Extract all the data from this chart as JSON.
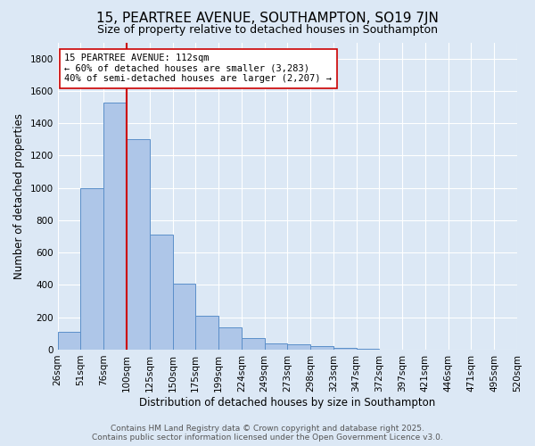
{
  "title": "15, PEARTREE AVENUE, SOUTHAMPTON, SO19 7JN",
  "subtitle": "Size of property relative to detached houses in Southampton",
  "xlabel": "Distribution of detached houses by size in Southampton",
  "ylabel": "Number of detached properties",
  "bar_values": [
    110,
    1000,
    1530,
    1300,
    710,
    410,
    210,
    140,
    70,
    40,
    35,
    20,
    12,
    8,
    0,
    0,
    0,
    0,
    0,
    0
  ],
  "categories": [
    "26sqm",
    "51sqm",
    "76sqm",
    "100sqm",
    "125sqm",
    "150sqm",
    "175sqm",
    "199sqm",
    "224sqm",
    "249sqm",
    "273sqm",
    "298sqm",
    "323sqm",
    "347sqm",
    "372sqm",
    "397sqm",
    "421sqm",
    "446sqm",
    "471sqm",
    "495sqm",
    "520sqm"
  ],
  "bar_color": "#aec6e8",
  "bar_edge_color": "#5b8fc9",
  "background_color": "#dce8f5",
  "grid_color": "#ffffff",
  "annotation_box_color": "#ffffff",
  "annotation_border_color": "#cc0000",
  "vline_color": "#cc0000",
  "vline_x": 3.0,
  "annotation_text_line1": "15 PEARTREE AVENUE: 112sqm",
  "annotation_text_line2": "← 60% of detached houses are smaller (3,283)",
  "annotation_text_line3": "40% of semi-detached houses are larger (2,207) →",
  "ylim": [
    0,
    1900
  ],
  "yticks": [
    0,
    200,
    400,
    600,
    800,
    1000,
    1200,
    1400,
    1600,
    1800
  ],
  "footer_line1": "Contains HM Land Registry data © Crown copyright and database right 2025.",
  "footer_line2": "Contains public sector information licensed under the Open Government Licence v3.0.",
  "title_fontsize": 11,
  "subtitle_fontsize": 9,
  "axis_label_fontsize": 8.5,
  "tick_fontsize": 7.5,
  "annotation_fontsize": 7.5,
  "footer_fontsize": 6.5
}
